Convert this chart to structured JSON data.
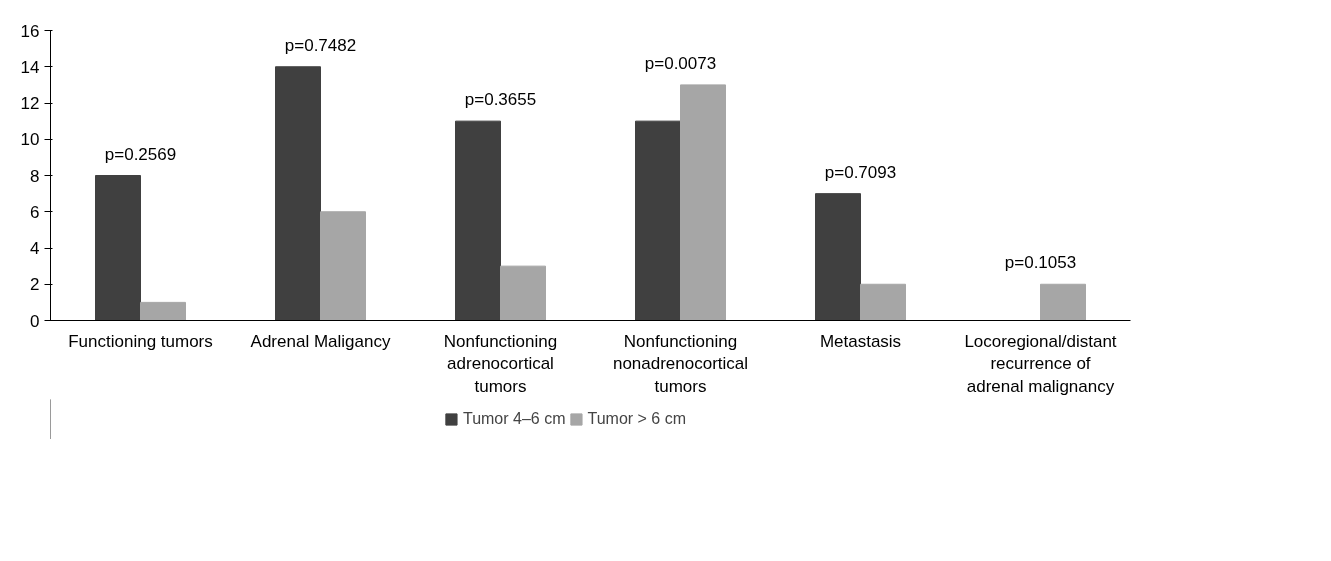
{
  "chart_data": {
    "type": "bar",
    "categories": [
      "Functioning tumors",
      "Adrenal Maligancy",
      "Nonfunctioning adrenocortical tumors",
      "Nonfunctioning nonadrenocortical tumors",
      "Metastasis",
      "Locoregional/distant recurrence of adrenal malignancy"
    ],
    "series": [
      {
        "name": "Tumor 4–6 cm",
        "color": "#404040",
        "values": [
          8,
          14,
          11,
          11,
          7,
          0
        ]
      },
      {
        "name": "Tumor > 6 cm",
        "color": "#a6a6a6",
        "values": [
          1,
          6,
          3,
          13,
          2,
          2
        ]
      }
    ],
    "ylim": [
      0,
      16
    ],
    "yticks": [
      0,
      2,
      4,
      6,
      8,
      10,
      12,
      14,
      16
    ],
    "annotations": [
      {
        "text": "p=0.2569",
        "x": "Functioning tumors",
        "y": 8
      },
      {
        "text": "p=0.7482",
        "x": "Adrenal Maligancy",
        "y": 14
      },
      {
        "text": "p=0.3655",
        "x": "Nonfunctioning adrenocortical tumors",
        "y": 11
      },
      {
        "text": "p=0.0073",
        "x": "Nonfunctioning nonadrenocortical tumors",
        "y": 13
      },
      {
        "text": "p=0.7093",
        "x": "Metastasis",
        "y": 7
      },
      {
        "text": "p=0.1053",
        "x": "Locoregional/distant recurrence of adrenal malignancy",
        "y": 2
      }
    ],
    "grid": false,
    "legend": "bottom"
  }
}
